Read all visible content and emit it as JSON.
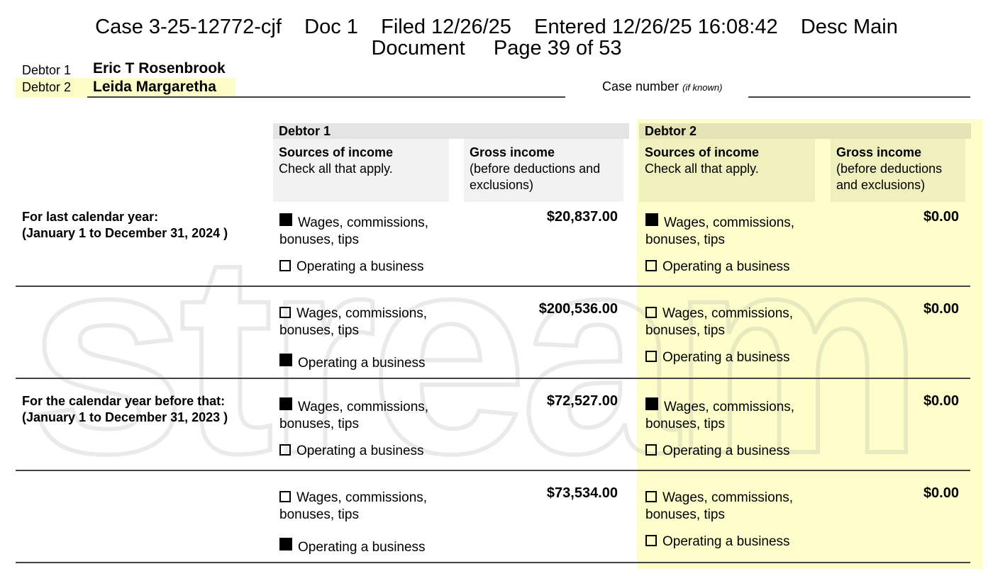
{
  "header": {
    "line1": "Case 3-25-12772-cjf    Doc 1    Filed 12/26/25    Entered 12/26/25 16:08:42    Desc Main",
    "line2": "Document     Page 39 of 53"
  },
  "debtors": {
    "debtor1_label": "Debtor 1",
    "debtor1_name": "Eric T Rosenbrook",
    "debtor2_label": "Debtor 2",
    "debtor2_name": "Leida Margaretha",
    "case_number_label": "Case number",
    "case_number_hint": "(if known)",
    "case_number_value": ""
  },
  "watermark": "stream",
  "columns": {
    "debtor1": {
      "title": "Debtor 1",
      "sources_title": "Sources of income",
      "sources_sub": "Check all that apply.",
      "gross_title": "Gross income",
      "gross_sub": "(before deductions and exclusions)"
    },
    "debtor2": {
      "title": "Debtor 2",
      "sources_title": "Sources of income",
      "sources_sub": "Check all that apply.",
      "gross_title": "Gross income",
      "gross_sub": "(before deductions and exclusions)"
    }
  },
  "options": {
    "wages": "Wages, commissions, bonuses, tips",
    "business": "Operating a business"
  },
  "rows": [
    {
      "period_line1": "For last calendar year:",
      "period_line2": "(January 1 to December 31, 2024 )",
      "d1": {
        "wages_checked": true,
        "business_checked": false,
        "amount": "$20,837.00"
      },
      "d2": {
        "wages_checked": true,
        "business_checked": false,
        "amount": "$0.00"
      }
    },
    {
      "period_line1": "",
      "period_line2": "",
      "d1": {
        "wages_checked": false,
        "business_checked": true,
        "amount": "$200,536.00"
      },
      "d2": {
        "wages_checked": false,
        "business_checked": false,
        "amount": "$0.00"
      }
    },
    {
      "period_line1": "For the calendar year before that:",
      "period_line2": "(January 1 to December 31, 2023 )",
      "d1": {
        "wages_checked": true,
        "business_checked": false,
        "amount": "$72,527.00"
      },
      "d2": {
        "wages_checked": true,
        "business_checked": false,
        "amount": "$0.00"
      }
    },
    {
      "period_line1": "",
      "period_line2": "",
      "d1": {
        "wages_checked": false,
        "business_checked": true,
        "amount": "$73,534.00"
      },
      "d2": {
        "wages_checked": false,
        "business_checked": false,
        "amount": "$0.00"
      }
    }
  ],
  "colors": {
    "highlight": "#fefecb",
    "debtor1_band": "#e4e4e4",
    "debtor2_band": "#e3e3b6"
  }
}
